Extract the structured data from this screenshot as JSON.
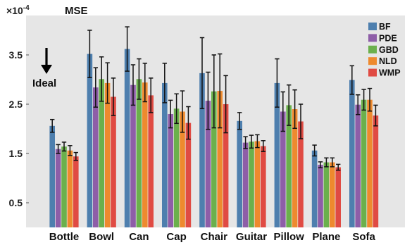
{
  "chart_data": {
    "type": "bar",
    "title": "MSE",
    "axis_multiplier": "×10",
    "axis_multiplier_exp": "-4",
    "annotation": "Ideal",
    "ylim": [
      0,
      4.3
    ],
    "yticks": [
      "0.5",
      "1.5",
      "2.5",
      "3.5"
    ],
    "ytick_values": [
      0.5,
      1.5,
      2.5,
      3.5
    ],
    "grid": false,
    "legend_position": "top-right",
    "categories": [
      "Bottle",
      "Bowl",
      "Can",
      "Cap",
      "Chair",
      "Guitar",
      "Pillow",
      "Plane",
      "Sofa"
    ],
    "series": [
      {
        "name": "BF",
        "color": "#4e7fae",
        "values": [
          2.06,
          3.52,
          3.62,
          2.93,
          3.13,
          2.16,
          2.93,
          1.56,
          2.99
        ],
        "errors": [
          0.13,
          0.48,
          0.45,
          0.4,
          0.72,
          0.17,
          0.49,
          0.11,
          0.29
        ]
      },
      {
        "name": "PDE",
        "color": "#8e5ea8",
        "values": [
          1.59,
          2.84,
          2.89,
          2.3,
          2.57,
          1.72,
          2.35,
          1.27,
          2.49
        ],
        "errors": [
          0.09,
          0.4,
          0.41,
          0.28,
          0.58,
          0.12,
          0.4,
          0.06,
          0.2
        ]
      },
      {
        "name": "GBD",
        "color": "#6bb04c",
        "values": [
          1.64,
          3.01,
          3.01,
          2.41,
          2.76,
          1.74,
          2.48,
          1.32,
          2.59
        ],
        "errors": [
          0.09,
          0.45,
          0.41,
          0.3,
          0.74,
          0.13,
          0.41,
          0.09,
          0.21
        ]
      },
      {
        "name": "NLD",
        "color": "#ee8a2e",
        "values": [
          1.56,
          2.93,
          2.94,
          2.35,
          2.77,
          1.75,
          2.4,
          1.32,
          2.59
        ],
        "errors": [
          0.1,
          0.41,
          0.39,
          0.42,
          0.75,
          0.13,
          0.39,
          0.09,
          0.23
        ]
      },
      {
        "name": "WMP",
        "color": "#e04b43",
        "values": [
          1.44,
          2.65,
          2.68,
          2.12,
          2.5,
          1.65,
          2.15,
          1.22,
          2.27
        ],
        "errors": [
          0.08,
          0.38,
          0.35,
          0.33,
          0.58,
          0.11,
          0.35,
          0.06,
          0.21
        ]
      }
    ]
  }
}
